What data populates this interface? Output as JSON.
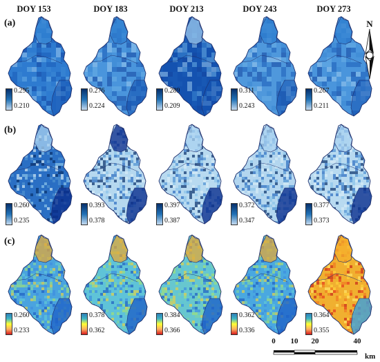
{
  "column_headers": [
    "DOY 153",
    "DOY 183",
    "DOY 213",
    "DOY 243",
    "DOY 273"
  ],
  "row_labels": [
    "(a)",
    "(b)",
    "(c)"
  ],
  "legends": {
    "a": [
      [
        "0.295",
        "0.210"
      ],
      [
        "0.276",
        "0.224"
      ],
      [
        "0.289",
        "0.209"
      ],
      [
        "0.311",
        "0.243"
      ],
      [
        "0.267",
        "0.211"
      ]
    ],
    "b": [
      [
        "0.260",
        "0.235"
      ],
      [
        "0.393",
        "0.378"
      ],
      [
        "0.397",
        "0.387"
      ],
      [
        "0.372",
        "0.347"
      ],
      [
        "0.377",
        "0.373"
      ]
    ],
    "c": [
      [
        "0.260",
        "0.233"
      ],
      [
        "0.378",
        "0.362"
      ],
      [
        "0.384",
        "0.366"
      ],
      [
        "0.362",
        "0.336"
      ],
      [
        "0.364",
        "0.355"
      ]
    ]
  },
  "north_label": "N",
  "scale_bar": {
    "ticks": [
      "0",
      "10",
      "20",
      "40"
    ],
    "unit": "km"
  },
  "colors": {
    "blue_dark": "#08306b",
    "blue_mid": "#2171b5",
    "blue_light": "#c6dbef",
    "jet_low": "#d7191c",
    "jet_mid": "#ffff33",
    "jet_high": "#2c7fb8"
  },
  "panel_fills": {
    "a": [
      "#2e7bd0",
      "#4a95dc",
      "#1452b0",
      "#4f98dc",
      "#4a95dc"
    ],
    "b": [
      "#2a6fc4",
      "#b5d8ef",
      "#b8daf0",
      "#b3d6ef",
      "#b8daf0"
    ],
    "c": [
      "#4aa3df",
      "#5fc3d8",
      "#67c7cf",
      "#4aa8e0",
      "#f0b030"
    ]
  }
}
